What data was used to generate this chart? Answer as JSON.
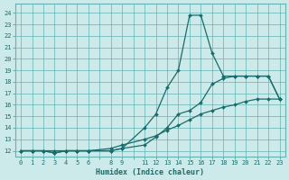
{
  "xlabel": "Humidex (Indice chaleur)",
  "bg_color": "#cceaea",
  "grid_color": "#66b2b2",
  "line_color": "#1a6b6b",
  "y_ticks": [
    12,
    13,
    14,
    15,
    16,
    17,
    18,
    19,
    20,
    21,
    22,
    23,
    24
  ],
  "xlim": [
    -0.5,
    23.5
  ],
  "ylim": [
    11.5,
    24.8
  ],
  "curve_bottom_x": [
    0,
    1,
    2,
    3,
    4,
    5,
    6,
    8,
    9,
    11,
    12,
    13,
    14,
    15,
    16,
    17,
    18,
    19,
    20,
    21,
    22,
    23
  ],
  "curve_bottom_y": [
    12,
    12,
    12,
    12,
    12,
    12,
    12,
    12.2,
    12.5,
    13.0,
    13.3,
    13.8,
    14.2,
    14.7,
    15.2,
    15.5,
    15.8,
    16.0,
    16.3,
    16.5,
    16.5,
    16.5
  ],
  "curve_mid_x": [
    0,
    1,
    2,
    3,
    4,
    5,
    6,
    8,
    9,
    11,
    12,
    13,
    14,
    15,
    16,
    17,
    18,
    19,
    20,
    21,
    22,
    23
  ],
  "curve_mid_y": [
    12,
    12,
    12,
    11.8,
    12,
    12,
    12,
    12,
    12.2,
    12.5,
    13.2,
    14.0,
    15.2,
    15.5,
    16.2,
    17.8,
    18.3,
    18.5,
    18.5,
    18.5,
    18.5,
    16.5
  ],
  "curve_top_x": [
    0,
    1,
    2,
    3,
    4,
    5,
    6,
    8,
    9,
    11,
    12,
    13,
    14,
    15,
    16,
    17,
    18,
    19,
    20,
    21,
    22,
    23
  ],
  "curve_top_y": [
    12,
    12,
    12,
    11.8,
    12,
    12,
    12,
    12,
    12.2,
    14.0,
    15.2,
    17.5,
    19.0,
    23.8,
    23.8,
    20.5,
    18.5,
    18.5,
    18.5,
    18.5,
    18.5,
    16.5
  ]
}
